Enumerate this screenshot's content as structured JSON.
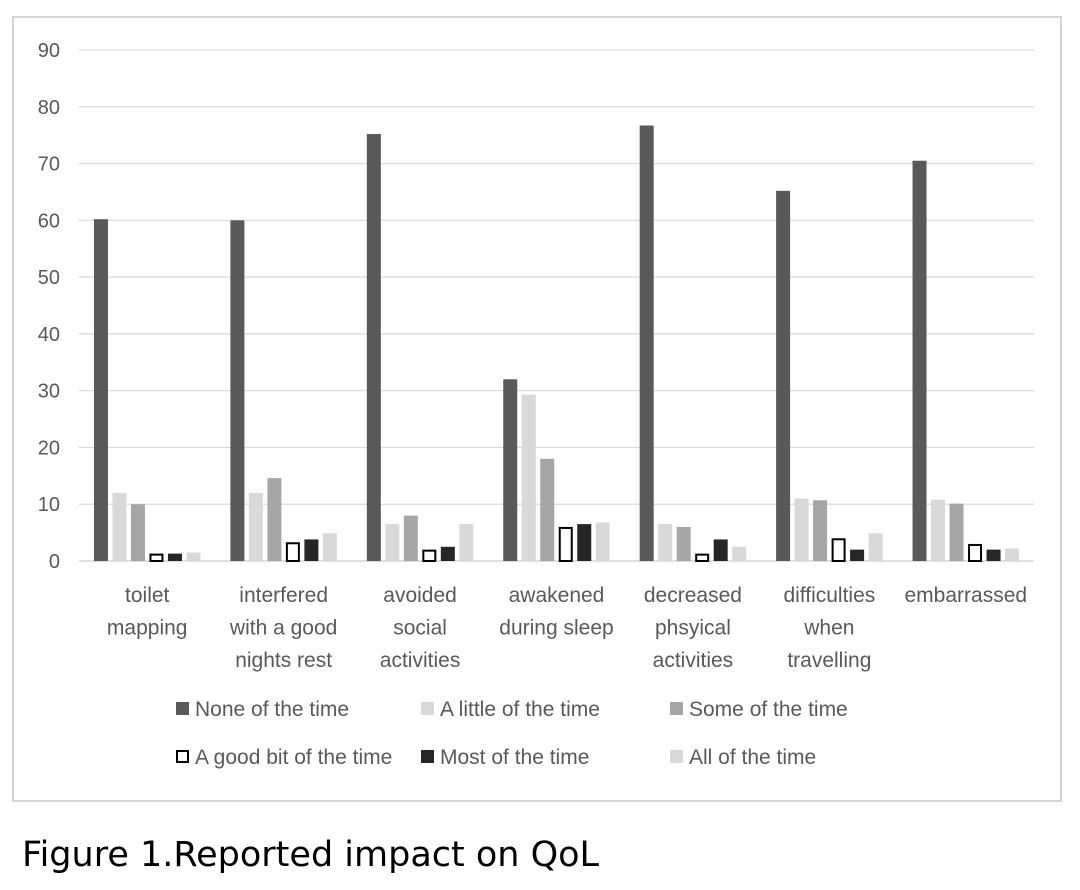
{
  "caption": "Figure 1.Reported impact on QoL",
  "chart_data": {
    "type": "bar",
    "categories": [
      [
        "toilet",
        "mapping"
      ],
      [
        "interfered",
        "with a good",
        "nights rest"
      ],
      [
        "avoided",
        "social",
        "activities"
      ],
      [
        "awakened",
        "during sleep"
      ],
      [
        "decreased",
        "phsyical",
        "activities"
      ],
      [
        "difficulties",
        "when",
        "travelling"
      ],
      [
        "embarrassed"
      ]
    ],
    "series": [
      {
        "name": "None of the time",
        "color": "#595959",
        "values": [
          60.2,
          60.0,
          75.2,
          32.0,
          76.7,
          65.2,
          70.5
        ]
      },
      {
        "name": "A little of the time",
        "color": "#d9d9d9",
        "values": [
          12.0,
          12.0,
          6.5,
          29.3,
          6.5,
          11.0,
          10.8
        ]
      },
      {
        "name": "Some of the time",
        "color": "#a6a6a6",
        "values": [
          10.0,
          14.6,
          8.0,
          18.0,
          6.0,
          10.7,
          10.1
        ]
      },
      {
        "name": "A good bit of the time",
        "color": "#ffffff",
        "stroke": "#000000",
        "values": [
          1.3,
          3.3,
          2.0,
          6.0,
          1.3,
          4.0,
          3.0
        ]
      },
      {
        "name": "Most of the time",
        "color": "#262626",
        "values": [
          1.3,
          3.8,
          2.5,
          6.5,
          3.8,
          2.0,
          2.0
        ]
      },
      {
        "name": "All of the time",
        "color": "#d9d9d9",
        "values": [
          1.5,
          4.9,
          6.5,
          6.8,
          2.5,
          4.9,
          2.2
        ]
      }
    ],
    "ylim": [
      0,
      90
    ],
    "yticks": [
      0,
      10,
      20,
      30,
      40,
      50,
      60,
      70,
      80,
      90
    ],
    "grid": true,
    "legend_position": "bottom",
    "title": "",
    "xlabel": "",
    "ylabel": ""
  }
}
